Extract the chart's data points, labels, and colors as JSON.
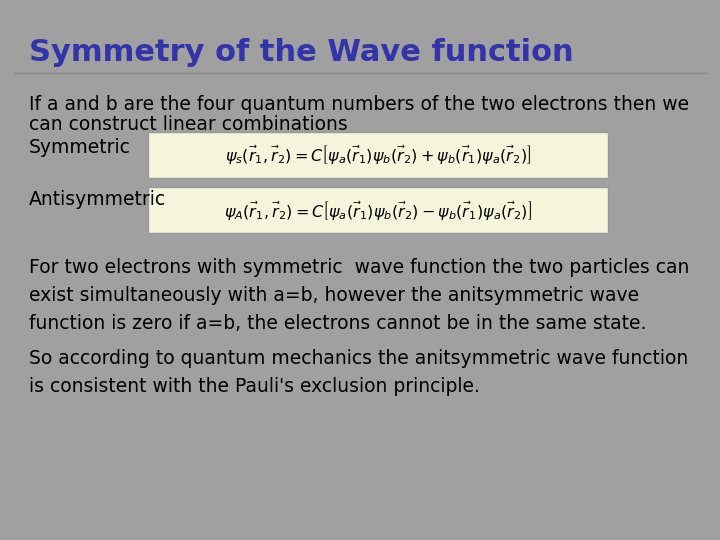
{
  "title": "Symmetry of the Wave function",
  "title_color": "#3333aa",
  "title_fontsize": 22,
  "background_color": "#a0a0a0",
  "text_color": "#000000",
  "body_fontsize": 13.5,
  "line1": "If a and b are the four quantum numbers of the two electrons then we",
  "line2": "can construct linear combinations",
  "sym_label": "Symmetric",
  "antisym_label": "Antisymmetric",
  "sym_formula": "$\\psi_s(\\vec{r}_1,\\vec{r}_2) = C\\left[\\psi_a(\\vec{r}_1)\\psi_b(\\vec{r}_2)+\\psi_b(\\vec{r}_1)\\psi_a(\\vec{r}_2)\\right]$",
  "antisym_formula": "$\\psi_A(\\vec{r}_1,\\vec{r}_2) = C\\left[\\psi_a(\\vec{r}_1)\\psi_b(\\vec{r}_2)-\\psi_b(\\vec{r}_1)\\psi_a(\\vec{r}_2)\\right]$",
  "para1_line1": "For two electrons with symmetric  wave function the two particles can",
  "para1_line2": "exist simultaneously with a=b, however the anitsymmetric wave",
  "para1_line3": "function is zero if a=b, the electrons cannot be in the same state.",
  "para2_line1": "So according to quantum mechanics the anitsymmetric wave function",
  "para2_line2": "is consistent with the Pauli's exclusion principle.",
  "formula_bg": "#f5f5dc",
  "formula_border": "#999999"
}
